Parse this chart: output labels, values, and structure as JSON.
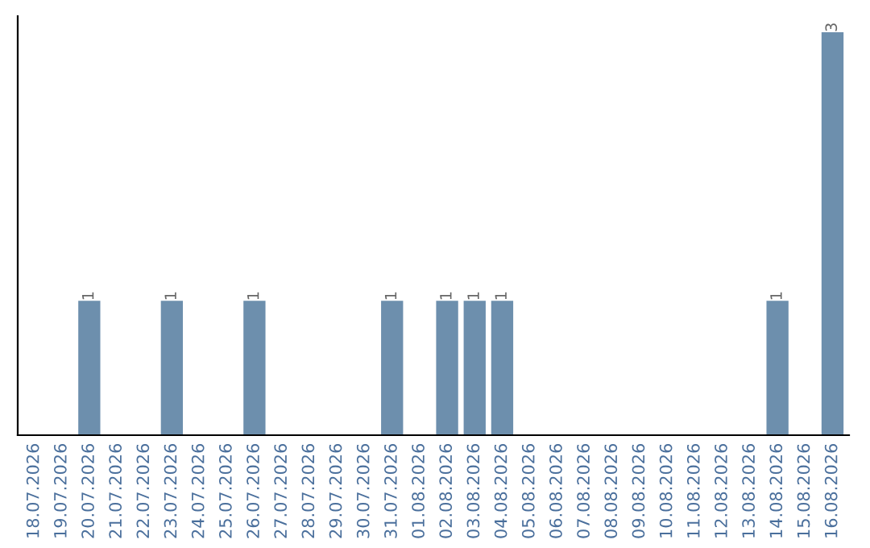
{
  "chart_data": {
    "type": "bar",
    "categories": [
      "18.07.2026",
      "19.07.2026",
      "20.07.2026",
      "21.07.2026",
      "22.07.2026",
      "23.07.2026",
      "24.07.2026",
      "25.07.2026",
      "26.07.2026",
      "27.07.2026",
      "28.07.2026",
      "29.07.2026",
      "30.07.2026",
      "31.07.2026",
      "01.08.2026",
      "02.08.2026",
      "03.08.2026",
      "04.08.2026",
      "05.08.2026",
      "06.08.2026",
      "07.08.2026",
      "08.08.2026",
      "09.08.2026",
      "10.08.2026",
      "11.08.2026",
      "12.08.2026",
      "13.08.2026",
      "14.08.2026",
      "15.08.2026",
      "16.08.2026"
    ],
    "values": [
      0,
      0,
      1,
      0,
      0,
      1,
      0,
      0,
      1,
      0,
      0,
      0,
      0,
      1,
      0,
      1,
      1,
      1,
      0,
      0,
      0,
      0,
      0,
      0,
      0,
      0,
      0,
      1,
      0,
      3
    ],
    "value_labels": [
      null,
      null,
      "1",
      null,
      null,
      "1",
      null,
      null,
      "1",
      null,
      null,
      null,
      null,
      "1",
      null,
      "1",
      "1",
      "1",
      null,
      null,
      null,
      null,
      null,
      null,
      null,
      null,
      null,
      "1",
      null,
      "3"
    ],
    "color": "#6d8fad",
    "grid": false,
    "legend": false
  }
}
